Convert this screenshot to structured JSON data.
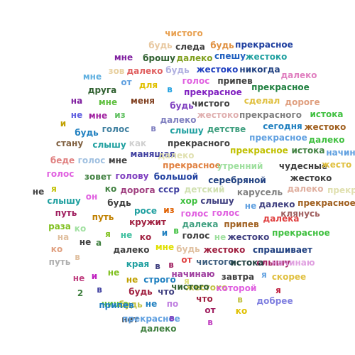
{
  "words": [
    {
      "text": "чистого",
      "color": "#e8a050"
    },
    {
      "text": "будь",
      "color": "#e8c8a0"
    },
    {
      "text": "следа",
      "color": "#404040"
    },
    {
      "text": "будь",
      "color": "#e09040"
    },
    {
      "text": "прекрасное",
      "color": "#2040a0"
    },
    {
      "text": "мне",
      "color": "#8020a0"
    },
    {
      "text": "брошу",
      "color": "#306030"
    },
    {
      "text": "далеко",
      "color": "#80a020"
    },
    {
      "text": "спешу",
      "color": "#2060c0"
    },
    {
      "text": "жестоко",
      "color": "#20a0a0"
    },
    {
      "text": "мне",
      "color": "#60b0e0"
    },
    {
      "text": "зов",
      "color": "#e8d0a0"
    },
    {
      "text": "далеко",
      "color": "#e06060"
    },
    {
      "text": "будь",
      "color": "#b0b0e0"
    },
    {
      "text": "жестоко",
      "color": "#2040c0"
    },
    {
      "text": "никогда",
      "color": "#204080"
    },
    {
      "text": "далеко",
      "color": "#e080c0"
    },
    {
      "text": "от",
      "color": "#60a0e0"
    },
    {
      "text": "для",
      "color": "#e0c000"
    },
    {
      "text": "голос",
      "color": "#e060e0"
    },
    {
      "text": "припев",
      "color": "#404040"
    },
    {
      "text": "друга",
      "color": "#306030"
    },
    {
      "text": "в",
      "color": "#20a0e0"
    },
    {
      "text": "прекрасное",
      "color": "#8020c0"
    },
    {
      "text": "прекрасное",
      "color": "#208040"
    },
    {
      "text": "на",
      "color": "#8020a0"
    },
    {
      "text": "мне",
      "color": "#60c040"
    },
    {
      "text": "меня",
      "color": "#804020"
    },
    {
      "text": "будь",
      "color": "#8040c0"
    },
    {
      "text": "чистого",
      "color": "#404040"
    },
    {
      "text": "сделал",
      "color": "#e0c040"
    },
    {
      "text": "дороге",
      "color": "#e0a080"
    },
    {
      "text": "не",
      "color": "#6060e0"
    },
    {
      "text": "мне",
      "color": "#a020a0"
    },
    {
      "text": "из",
      "color": "#60c060"
    },
    {
      "text": "далеко",
      "color": "#8080c0"
    },
    {
      "text": "жестоко",
      "color": "#e0b0b0"
    },
    {
      "text": "прекрасного",
      "color": "#808080"
    },
    {
      "text": "истока",
      "color": "#40c040"
    },
    {
      "text": "и",
      "color": "#c0a000"
    },
    {
      "text": "голос",
      "color": "#4080a0"
    },
    {
      "text": "в",
      "color": "#8080c0"
    },
    {
      "text": "слышу",
      "color": "#20a0a0"
    },
    {
      "text": "детстве",
      "color": "#40a080"
    },
    {
      "text": "сегодня",
      "color": "#2080c0"
    },
    {
      "text": "жестоко",
      "color": "#a06020"
    },
    {
      "text": "будь",
      "color": "#2080c0"
    },
    {
      "text": "прекрасное",
      "color": "#60a0e0"
    },
    {
      "text": "далеко",
      "color": "#40c040"
    },
    {
      "text": "стану",
      "color": "#806040"
    },
    {
      "text": "слышу",
      "color": "#20a0a0"
    },
    {
      "text": "как",
      "color": "#d0d0d0"
    },
    {
      "text": "прекрасного",
      "color": "#404040"
    },
    {
      "text": "прекрасное",
      "color": "#c0c000"
    },
    {
      "text": "истока",
      "color": "#408040"
    },
    {
      "text": "начин",
      "color": "#60a0e0"
    },
    {
      "text": "беде",
      "color": "#e08080"
    },
    {
      "text": "голос",
      "color": "#a0c0e0"
    },
    {
      "text": "мне",
      "color": "#404040"
    },
    {
      "text": "манящая",
      "color": "#4040a0"
    },
    {
      "text": "далеко",
      "color": "#e0e0b0"
    },
    {
      "text": "прекрасное",
      "color": "#e08040"
    },
    {
      "text": "утренний",
      "color": "#a0e0a0"
    },
    {
      "text": "чудесные",
      "color": "#404040"
    },
    {
      "text": "жесто",
      "color": "#e0c040"
    },
    {
      "text": "голос",
      "color": "#e060e0"
    },
    {
      "text": "зовет",
      "color": "#408040"
    },
    {
      "text": "голову",
      "color": "#8040c0"
    },
    {
      "text": "большой",
      "color": "#2040a0"
    },
    {
      "text": "жестоко",
      "color": "#404040"
    },
    {
      "text": "серебряной",
      "color": "#204080"
    },
    {
      "text": "не",
      "color": "#404040"
    },
    {
      "text": "я",
      "color": "#c0c000"
    },
    {
      "text": "ко",
      "color": "#408040"
    },
    {
      "text": "дорога",
      "color": "#a04080"
    },
    {
      "text": "ссср",
      "color": "#4040a0"
    },
    {
      "text": "детский",
      "color": "#d0e0b0"
    },
    {
      "text": "карусель",
      "color": "#808080"
    },
    {
      "text": "далеко",
      "color": "#e0b0a0"
    },
    {
      "text": "прекр",
      "color": "#e0e0b0"
    },
    {
      "text": "слышу",
      "color": "#20a0a0"
    },
    {
      "text": "он",
      "color": "#e060e0"
    },
    {
      "text": "будь",
      "color": "#404040"
    },
    {
      "text": "хор",
      "color": "#40c040"
    },
    {
      "text": "слышу",
      "color": "#404080"
    },
    {
      "text": "не",
      "color": "#60a0e0"
    },
    {
      "text": "далеко",
      "color": "#404080"
    },
    {
      "text": "прекрасное",
      "color": "#a06020"
    },
    {
      "text": "путь",
      "color": "#a02060"
    },
    {
      "text": "росе",
      "color": "#20a0a0"
    },
    {
      "text": "из",
      "color": "#e06000"
    },
    {
      "text": "голос",
      "color": "#e060e0"
    },
    {
      "text": "голос",
      "color": "#e060e0"
    },
    {
      "text": "клянусь",
      "color": "#a06060"
    },
    {
      "text": "путь",
      "color": "#c08000"
    },
    {
      "text": "кружит",
      "color": "#a02040"
    },
    {
      "text": "далека",
      "color": "#40a080"
    },
    {
      "text": "припев",
      "color": "#a06020"
    },
    {
      "text": "далека",
      "color": "#e04040"
    },
    {
      "text": "раза",
      "color": "#80c020"
    },
    {
      "text": "ко",
      "color": "#a0e0a0"
    },
    {
      "text": "я",
      "color": "#80c020"
    },
    {
      "text": "не",
      "color": "#40c0a0"
    },
    {
      "text": "ко",
      "color": "#a02040"
    },
    {
      "text": "и",
      "color": "#2080c0"
    },
    {
      "text": "в",
      "color": "#40c040"
    },
    {
      "text": "голос",
      "color": "#404040"
    },
    {
      "text": "не",
      "color": "#a0e0a0"
    },
    {
      "text": "жестоко",
      "color": "#404080"
    },
    {
      "text": "прекрасное",
      "color": "#40c040"
    },
    {
      "text": "на",
      "color": "#e0c0a0"
    },
    {
      "text": "не",
      "color": "#404040"
    },
    {
      "text": "а",
      "color": "#408040"
    },
    {
      "text": "далеко",
      "color": "#404040"
    },
    {
      "text": "мне",
      "color": "#e0e000"
    },
    {
      "text": "будь",
      "color": "#e0c0a0"
    },
    {
      "text": "жестоко",
      "color": "#a02040"
    },
    {
      "text": "спрашивает",
      "color": "#204080"
    },
    {
      "text": "ко",
      "color": "#e0a080"
    },
    {
      "text": "в",
      "color": "#e0c0a0"
    },
    {
      "text": "от",
      "color": "#e04040"
    },
    {
      "text": "слышу",
      "color": "#a02060"
    },
    {
      "text": "путь",
      "color": "#b0b0b0"
    },
    {
      "text": "края",
      "color": "#20a0a0"
    },
    {
      "text": "в",
      "color": "#404080"
    },
    {
      "text": "в",
      "color": "#a02060"
    },
    {
      "text": "чистого",
      "color": "#406080"
    },
    {
      "text": "истока",
      "color": "#204040"
    },
    {
      "text": "начинаю",
      "color": "#e0a0e0"
    },
    {
      "text": "не",
      "color": "#80c020"
    },
    {
      "text": "начинаю",
      "color": "#a040a0"
    },
    {
      "text": "завтра",
      "color": "#404040"
    },
    {
      "text": "я",
      "color": "#60a0e0"
    },
    {
      "text": "скорее",
      "color": "#e0c040"
    },
    {
      "text": "не",
      "color": "#c04080"
    },
    {
      "text": "и",
      "color": "#c020c0"
    },
    {
      "text": "не",
      "color": "#c0a000"
    },
    {
      "text": "строго",
      "color": "#2080c0"
    },
    {
      "text": "я",
      "color": "#e0e080"
    },
    {
      "text": "жестоко",
      "color": "#c0c040"
    },
    {
      "text": "которой",
      "color": "#e060e0"
    },
    {
      "text": "я",
      "color": "#c02040"
    },
    {
      "text": "2",
      "color": "#408040"
    },
    {
      "text": "в",
      "color": "#4040a0"
    },
    {
      "text": "будь",
      "color": "#a02040"
    },
    {
      "text": "что",
      "color": "#404080"
    },
    {
      "text": "чистого",
      "color": "#306030"
    },
    {
      "text": "чище",
      "color": "#60c040"
    },
    {
      "text": "будь",
      "color": "#c0c040"
    },
    {
      "text": "не",
      "color": "#2080c0"
    },
    {
      "text": "по",
      "color": "#c080e0"
    },
    {
      "text": "что",
      "color": "#a02040"
    },
    {
      "text": "в",
      "color": "#c0c040"
    },
    {
      "text": "добрее",
      "color": "#8080e0"
    },
    {
      "text": "припев",
      "color": "#2080c0"
    },
    {
      "text": "от",
      "color": "#a02060"
    },
    {
      "text": "ко",
      "color": "#e0c000"
    },
    {
      "text": "нет",
      "color": "#404040"
    },
    {
      "text": "прекрасное",
      "color": "#60a0e0"
    },
    {
      "text": "в",
      "color": "#8040c0"
    },
    {
      "text": "в",
      "color": "#c040c0"
    },
    {
      "text": "далеко",
      "color": "#408040"
    }
  ]
}
